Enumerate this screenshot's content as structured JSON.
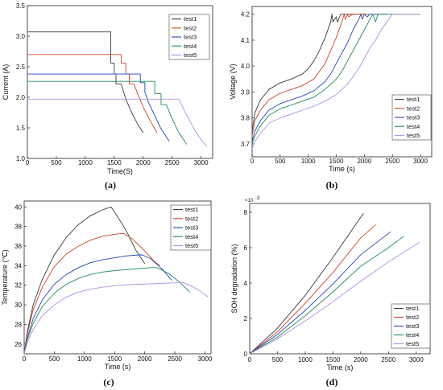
{
  "panel_labels": [
    "(a)",
    "(b)",
    "(c)",
    "(d)"
  ],
  "chart_data": [
    {
      "type": "line",
      "xlabel": "Time(S)",
      "ylabel": "Current (A)",
      "xlim": [
        0,
        3200
      ],
      "ylim": [
        1.0,
        3.5
      ],
      "xticks": [
        "0",
        "500",
        "1000",
        "1500",
        "2000",
        "2500",
        "3000"
      ],
      "yticks": [
        "1.0",
        "1.5",
        "2.0",
        "2.5",
        "3.0",
        "3.5"
      ],
      "legend": "top-right",
      "series": [
        {
          "name": "test1",
          "color": "#3a3a3a",
          "x": [
            0,
            1440,
            1440,
            1500,
            1500,
            1530,
            1530,
            1620,
            1700,
            1800,
            1900,
            2000
          ],
          "y": [
            3.07,
            3.07,
            2.56,
            2.56,
            2.38,
            2.38,
            2.22,
            2.22,
            1.97,
            1.75,
            1.57,
            1.42
          ]
        },
        {
          "name": "test2",
          "color": "#d0442b",
          "x": [
            0,
            1620,
            1620,
            1700,
            1700,
            1760,
            1760,
            1840,
            1920,
            2020,
            2120,
            2240
          ],
          "y": [
            2.7,
            2.7,
            2.56,
            2.56,
            2.38,
            2.38,
            2.22,
            2.22,
            2.02,
            1.8,
            1.62,
            1.42
          ]
        },
        {
          "name": "test3",
          "color": "#2246b8",
          "x": [
            0,
            1950,
            1950,
            2030,
            2030,
            2100,
            2200,
            2300,
            2450
          ],
          "y": [
            2.38,
            2.38,
            2.24,
            2.24,
            2.08,
            1.9,
            1.7,
            1.5,
            1.28
          ]
        },
        {
          "name": "test4",
          "color": "#1f8a5a",
          "x": [
            0,
            2200,
            2200,
            2310,
            2310,
            2400,
            2500,
            2600,
            2750
          ],
          "y": [
            2.26,
            2.26,
            2.06,
            2.06,
            1.88,
            1.88,
            1.65,
            1.45,
            1.23
          ]
        },
        {
          "name": "test5",
          "color": "#b48ee6",
          "x": [
            0,
            2620,
            2700,
            2800,
            2900,
            3020,
            3100
          ],
          "y": [
            1.97,
            1.97,
            1.8,
            1.62,
            1.45,
            1.28,
            1.2
          ]
        }
      ]
    },
    {
      "type": "line",
      "xlabel": "Time (s)",
      "ylabel": "Voltage (V)",
      "xlim": [
        0,
        3200
      ],
      "ylim": [
        3.65,
        4.23
      ],
      "xticks": [
        "0",
        "500",
        "1000",
        "1500",
        "2000",
        "2500",
        "3000"
      ],
      "yticks": [
        "3.7",
        "3.8",
        "3.9",
        "4.0",
        "4.1",
        "4.2"
      ],
      "legend": "bottom-right",
      "series": [
        {
          "name": "test1",
          "color": "#3a3a3a",
          "x": [
            0,
            50,
            150,
            300,
            500,
            700,
            900,
            1000,
            1100,
            1200,
            1300,
            1400,
            1420,
            1440,
            1500,
            1520,
            1580,
            1600,
            1700,
            2000
          ],
          "y": [
            3.75,
            3.82,
            3.87,
            3.91,
            3.935,
            3.95,
            3.97,
            3.99,
            4.02,
            4.06,
            4.11,
            4.17,
            4.2,
            4.17,
            4.19,
            4.17,
            4.2,
            4.2,
            4.2,
            4.2
          ]
        },
        {
          "name": "test2",
          "color": "#d0442b",
          "x": [
            0,
            50,
            150,
            300,
            500,
            700,
            900,
            1100,
            1200,
            1300,
            1400,
            1500,
            1600,
            1640,
            1660,
            1700,
            1720,
            1800,
            2100
          ],
          "y": [
            3.73,
            3.79,
            3.83,
            3.87,
            3.895,
            3.91,
            3.925,
            3.95,
            3.98,
            4.01,
            4.06,
            4.11,
            4.17,
            4.2,
            4.18,
            4.2,
            4.19,
            4.2,
            4.2
          ]
        },
        {
          "name": "test3",
          "color": "#2246b8",
          "x": [
            0,
            50,
            150,
            300,
            500,
            700,
            900,
            1100,
            1300,
            1400,
            1500,
            1600,
            1700,
            1800,
            1900,
            1940,
            1960,
            2000,
            2050,
            2100,
            2400
          ],
          "y": [
            3.71,
            3.75,
            3.79,
            3.83,
            3.855,
            3.87,
            3.885,
            3.905,
            3.94,
            3.97,
            4.01,
            4.05,
            4.09,
            4.14,
            4.18,
            4.2,
            4.18,
            4.2,
            4.19,
            4.2,
            4.2
          ]
        },
        {
          "name": "test4",
          "color": "#1f8a5a",
          "x": [
            0,
            50,
            150,
            300,
            500,
            700,
            900,
            1100,
            1300,
            1500,
            1600,
            1700,
            1800,
            1900,
            2000,
            2100,
            2150,
            2200,
            2240,
            2260,
            3000
          ],
          "y": [
            3.7,
            3.73,
            3.77,
            3.81,
            3.835,
            3.85,
            3.865,
            3.88,
            3.91,
            3.95,
            3.98,
            4.02,
            4.06,
            4.1,
            4.14,
            4.18,
            4.2,
            4.17,
            4.2,
            4.2,
            4.2
          ]
        },
        {
          "name": "test5",
          "color": "#b48ee6",
          "x": [
            0,
            50,
            150,
            300,
            500,
            700,
            900,
            1100,
            1300,
            1500,
            1700,
            1800,
            1900,
            2000,
            2100,
            2200,
            2300,
            2400,
            2500,
            3000
          ],
          "y": [
            3.68,
            3.71,
            3.74,
            3.78,
            3.8,
            3.815,
            3.83,
            3.845,
            3.865,
            3.89,
            3.93,
            3.96,
            3.99,
            4.03,
            4.07,
            4.1,
            4.14,
            4.17,
            4.2,
            4.2
          ]
        }
      ]
    },
    {
      "type": "line",
      "xlabel": "Time (s)",
      "ylabel": "Temperature (℃)",
      "xlim": [
        0,
        3100
      ],
      "ylim": [
        25,
        40.6
      ],
      "xticks": [
        "0",
        "500",
        "1000",
        "1500",
        "2000",
        "2500",
        "3000"
      ],
      "yticks": [
        "26",
        "28",
        "30",
        "32",
        "34",
        "36",
        "38",
        "40"
      ],
      "legend": "top-right",
      "series": [
        {
          "name": "test1",
          "color": "#3a3a3a",
          "x": [
            0,
            50,
            150,
            300,
            500,
            700,
            900,
            1100,
            1300,
            1440,
            1550,
            1700,
            1850,
            2000
          ],
          "y": [
            25.0,
            27.2,
            30.0,
            32.6,
            35.1,
            36.9,
            38.2,
            39.1,
            39.7,
            40.0,
            39.0,
            37.5,
            35.6,
            34.2
          ]
        },
        {
          "name": "test2",
          "color": "#d0442b",
          "x": [
            0,
            50,
            150,
            300,
            500,
            700,
            900,
            1100,
            1300,
            1500,
            1650,
            1800,
            2000,
            2150,
            2250
          ],
          "y": [
            25.0,
            27.0,
            29.5,
            31.8,
            33.9,
            35.2,
            36.0,
            36.6,
            37.0,
            37.2,
            37.3,
            36.7,
            35.5,
            34.5,
            34.0
          ]
        },
        {
          "name": "test3",
          "color": "#2246b8",
          "x": [
            0,
            50,
            150,
            300,
            500,
            700,
            900,
            1100,
            1300,
            1500,
            1700,
            1900,
            1960,
            2100,
            2300,
            2450
          ],
          "y": [
            25.0,
            26.6,
            28.6,
            30.5,
            32.1,
            33.1,
            33.8,
            34.3,
            34.6,
            34.8,
            35.0,
            35.1,
            35.1,
            34.7,
            33.6,
            32.5
          ]
        },
        {
          "name": "test4",
          "color": "#1f8a5a",
          "x": [
            0,
            50,
            150,
            300,
            500,
            700,
            900,
            1100,
            1300,
            1500,
            1700,
            1900,
            2100,
            2200,
            2400,
            2600,
            2750
          ],
          "y": [
            25.0,
            26.4,
            28.1,
            29.8,
            31.2,
            32.1,
            32.7,
            33.1,
            33.35,
            33.5,
            33.6,
            33.7,
            33.8,
            33.8,
            33.2,
            32.2,
            31.3
          ]
        },
        {
          "name": "test5",
          "color": "#b48ee6",
          "x": [
            0,
            50,
            150,
            300,
            500,
            700,
            900,
            1100,
            1300,
            1500,
            1700,
            1900,
            2100,
            2300,
            2500,
            2620,
            2750,
            2900,
            3050
          ],
          "y": [
            25.0,
            26.1,
            27.5,
            28.9,
            30.0,
            30.8,
            31.3,
            31.6,
            31.8,
            31.95,
            32.05,
            32.1,
            32.15,
            32.2,
            32.25,
            32.3,
            32.0,
            31.5,
            30.8
          ]
        }
      ]
    },
    {
      "type": "line",
      "xlabel": "Time (s)",
      "ylabel": "SOH degradation (%)",
      "y_multiplier": "×10",
      "y_multiplier_exp": "-3",
      "xlim": [
        0,
        3250
      ],
      "ylim": [
        0,
        8.5
      ],
      "xticks": [
        "0",
        "500",
        "1000",
        "1500",
        "2000",
        "2500",
        "3000"
      ],
      "yticks": [
        "0",
        "2",
        "4",
        "6",
        "8"
      ],
      "legend": "bottom-right",
      "series": [
        {
          "name": "test1",
          "color": "#3a3a3a",
          "x": [
            0,
            500,
            1000,
            1500,
            2050
          ],
          "y": [
            0,
            1.45,
            3.3,
            5.45,
            7.95
          ]
        },
        {
          "name": "test2",
          "color": "#d0442b",
          "x": [
            0,
            500,
            1000,
            1500,
            2000,
            2270
          ],
          "y": [
            0,
            1.25,
            2.85,
            4.6,
            6.55,
            7.3
          ]
        },
        {
          "name": "test3",
          "color": "#2246b8",
          "x": [
            0,
            500,
            1000,
            1500,
            2000,
            2540
          ],
          "y": [
            0,
            1.1,
            2.45,
            3.95,
            5.6,
            6.9
          ]
        },
        {
          "name": "test4",
          "color": "#1f8a5a",
          "x": [
            0,
            500,
            1000,
            1500,
            2000,
            2500,
            2780
          ],
          "y": [
            0,
            0.95,
            2.15,
            3.5,
            4.95,
            6.0,
            6.65
          ]
        },
        {
          "name": "test5",
          "color": "#b48ee6",
          "x": [
            0,
            500,
            1000,
            1500,
            2000,
            2500,
            3060
          ],
          "y": [
            0,
            0.85,
            1.85,
            2.95,
            4.1,
            5.2,
            6.3
          ]
        }
      ]
    }
  ]
}
